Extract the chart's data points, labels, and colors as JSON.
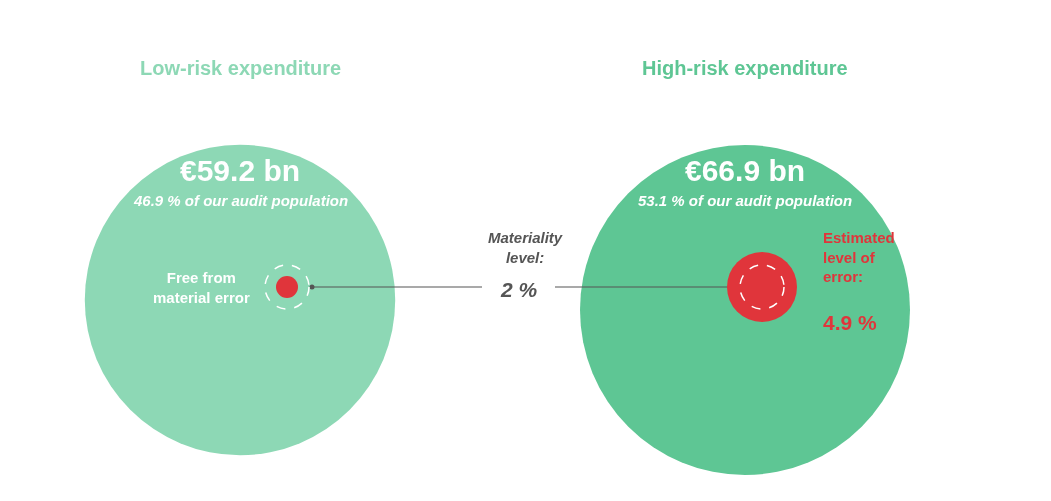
{
  "chart_data": {
    "type": "other",
    "categories": [
      "Low-risk expenditure",
      "High-risk expenditure"
    ],
    "values": [
      59.2,
      66.9
    ],
    "value_labels": [
      "€59.2 bn",
      "€66.9 bn"
    ],
    "colors": [
      "#8dd8b5",
      "#5ec694"
    ],
    "annotations": [
      "46.9 % of our audit population",
      "53.1 % of our audit population",
      "Free from\nmaterial error",
      "Materiality\nlevel:",
      "2 %",
      "Estimated\nlevel of\nerror:",
      "4.9 %"
    ]
  }
}
